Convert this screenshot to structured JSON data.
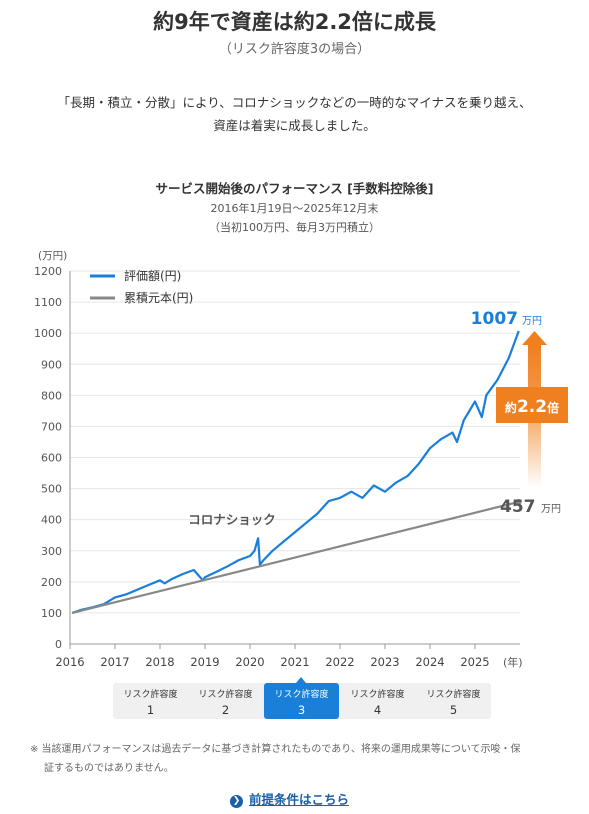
{
  "header": {
    "title": "約9年で資産は約2.2倍に成長",
    "subtitle": "（リスク許容度3の場合）"
  },
  "intro": {
    "line1": "「長期・積立・分散」により、コロナショックなどの一時的なマイナスを乗り越え、",
    "line2": "資産は着実に成長しました。"
  },
  "chart_header": {
    "title": "サービス開始後のパフォーマンス [手数料控除後]",
    "period": "2016年1月19日～2025年12月末",
    "condition": "（当初100万円、毎月3万円積立）"
  },
  "colors": {
    "valuation": "#1a7fd8",
    "principal": "#888888",
    "arrow": "#f07f1e",
    "active_tab": "#1a7fd8",
    "link": "#1a5fa8"
  },
  "chart_data": {
    "type": "line",
    "y_unit_label": "(万円)",
    "x_unit_label": "(年)",
    "ylim": [
      0,
      1200
    ],
    "y_ticks": [
      "0",
      "100",
      "200",
      "300",
      "400",
      "500",
      "600",
      "700",
      "800",
      "900",
      "1000",
      "1100",
      "1200"
    ],
    "x_ticks": [
      "2016",
      "2017",
      "2018",
      "2019",
      "2020",
      "2021",
      "2022",
      "2023",
      "2024",
      "2025"
    ],
    "xlim": [
      2016.0,
      2026.0
    ],
    "legend": [
      {
        "name": "評価額(円)",
        "color": "#1a7fd8"
      },
      {
        "name": "累積元本(円)",
        "color": "#888888"
      }
    ],
    "series": [
      {
        "name": "評価額(円)",
        "color": "#1a7fd8",
        "x": [
          2016.05,
          2016.25,
          2016.5,
          2016.75,
          2017.0,
          2017.25,
          2017.5,
          2017.75,
          2018.0,
          2018.1,
          2018.25,
          2018.5,
          2018.75,
          2018.95,
          2019.0,
          2019.25,
          2019.5,
          2019.75,
          2020.0,
          2020.1,
          2020.18,
          2020.22,
          2020.3,
          2020.5,
          2020.75,
          2021.0,
          2021.25,
          2021.5,
          2021.75,
          2022.0,
          2022.25,
          2022.5,
          2022.75,
          2023.0,
          2023.25,
          2023.5,
          2023.75,
          2024.0,
          2024.25,
          2024.5,
          2024.6,
          2024.75,
          2025.0,
          2025.15,
          2025.25,
          2025.5,
          2025.75,
          2025.97
        ],
        "y": [
          100,
          110,
          118,
          128,
          150,
          160,
          175,
          190,
          205,
          195,
          208,
          225,
          238,
          205,
          215,
          232,
          250,
          270,
          283,
          300,
          340,
          255,
          270,
          300,
          330,
          360,
          390,
          420,
          460,
          470,
          490,
          470,
          510,
          490,
          520,
          540,
          580,
          630,
          660,
          680,
          650,
          720,
          780,
          730,
          800,
          850,
          920,
          1007
        ]
      },
      {
        "name": "累積元本(円)",
        "color": "#888888",
        "x": [
          2016.05,
          2025.97
        ],
        "y": [
          100,
          457
        ]
      }
    ],
    "annotations": {
      "corona": "コロナショック",
      "final_value": "1007",
      "final_principal": "457",
      "unit": "万円",
      "ratio_prefix": "約",
      "ratio_value": "2.2",
      "ratio_suffix": "倍"
    }
  },
  "tabs": [
    {
      "label": "リスク許容度",
      "number": "1"
    },
    {
      "label": "リスク許容度",
      "number": "2"
    },
    {
      "label": "リスク許容度",
      "number": "3"
    },
    {
      "label": "リスク許容度",
      "number": "4"
    },
    {
      "label": "リスク許容度",
      "number": "5"
    }
  ],
  "active_tab": 2,
  "disclaimer": {
    "line1": "※ 当該運用パフォーマンスは過去データに基づき計算されたものであり、将来の運用成果等について示唆・保",
    "line2": "証するものではありません。"
  },
  "link": {
    "icon": "chevron-right-icon",
    "label": "前提条件はこちら"
  }
}
